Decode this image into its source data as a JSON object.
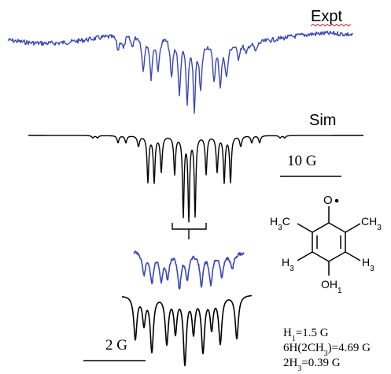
{
  "labels": {
    "expt": "Expt",
    "sim": "Sim",
    "scale_10g": "10 G",
    "scale_2g": "2 G"
  },
  "molecule": {
    "oxygen_radical": "O",
    "left_methyl": "H3C",
    "right_methyl": "CH3",
    "left_h": "H3",
    "right_h": "H3",
    "bottom_oh": "OH1"
  },
  "couplings": [
    {
      "main": "H",
      "sub": "1",
      "rest": "=1.5 G"
    },
    {
      "main": "6H(2CH",
      "sub": "3",
      "rest": ")=4.69 G"
    },
    {
      "main": "2H",
      "sub": "3",
      "rest": "=0.39 G"
    }
  ],
  "colors": {
    "experiment": "#3a45b8",
    "simulation": "#000000",
    "text": "#000000",
    "underline_accent": "#d22a2a"
  }
}
